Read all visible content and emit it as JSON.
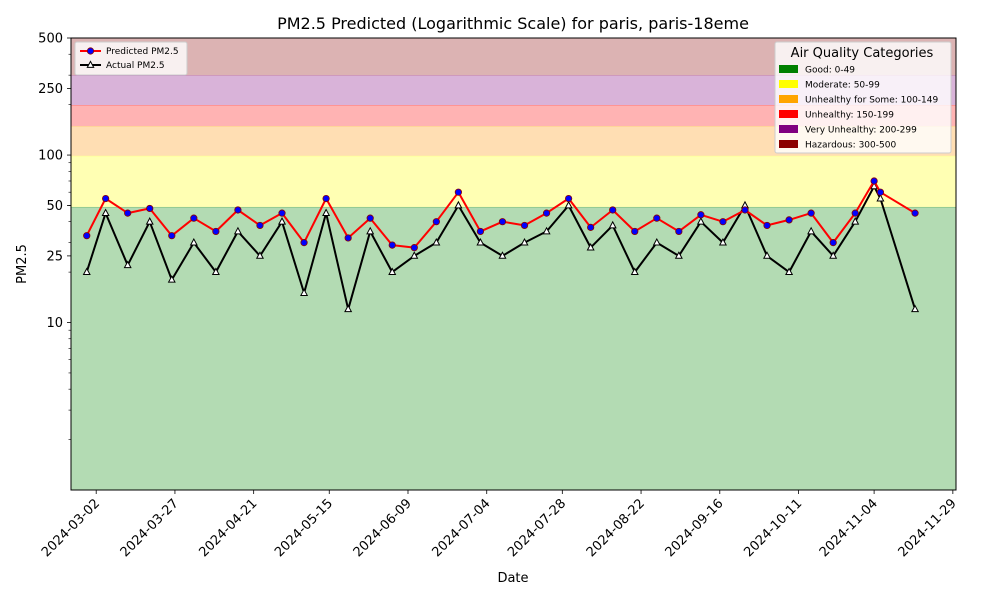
{
  "chart_data": {
    "type": "line",
    "title": "PM2.5 Predicted (Logarithmic Scale) for paris, paris-18eme",
    "xlabel": "Date",
    "ylabel": "PM2.5",
    "yscale": "log",
    "ylim": [
      1,
      500
    ],
    "xlim": [
      "2024-02-23",
      "2024-11-30"
    ],
    "y_ticks": [
      10,
      25,
      50,
      100,
      250,
      500
    ],
    "x_ticks": [
      "2024-03-02",
      "2024-03-27",
      "2024-04-21",
      "2024-05-15",
      "2024-06-09",
      "2024-07-04",
      "2024-07-28",
      "2024-08-22",
      "2024-09-16",
      "2024-10-11",
      "2024-11-04",
      "2024-11-29"
    ],
    "grid": false,
    "legend": {
      "placement": "top-left",
      "entries": [
        {
          "name": "Predicted PM2.5",
          "color": "#ff0000",
          "marker_face": "#0000ff",
          "marker": "circle"
        },
        {
          "name": "Actual PM2.5",
          "color": "#000000",
          "marker_face": "#ffffff",
          "marker": "triangle"
        }
      ]
    },
    "categories_legend": {
      "title": "Air Quality Categories",
      "placement": "top-right",
      "entries": [
        {
          "label": "Good: 0-49",
          "color": "#008000",
          "range": [
            0,
            49
          ],
          "band_color": "#b3dbb3"
        },
        {
          "label": "Moderate: 50-99",
          "color": "#ffff00",
          "range": [
            49,
            99
          ],
          "band_color": "#ffffb3"
        },
        {
          "label": "Unhealthy for Some: 100-149",
          "color": "#ffa500",
          "range": [
            99,
            149
          ],
          "band_color": "#ffdeb3"
        },
        {
          "label": "Unhealthy: 150-199",
          "color": "#ff0000",
          "range": [
            149,
            199
          ],
          "band_color": "#ffb3b3"
        },
        {
          "label": "Very Unhealthy: 200-299",
          "color": "#800080",
          "range": [
            199,
            299
          ],
          "band_color": "#d9b3d9"
        },
        {
          "label": "Hazardous: 300-500",
          "color": "#8b0000",
          "range": [
            299,
            500
          ],
          "band_color": "#dcb3b3"
        }
      ]
    },
    "series": [
      {
        "name": "Predicted PM2.5",
        "x": [
          "2024-02-28",
          "2024-03-05",
          "2024-03-12",
          "2024-03-19",
          "2024-03-26",
          "2024-04-02",
          "2024-04-09",
          "2024-04-16",
          "2024-04-23",
          "2024-04-30",
          "2024-05-07",
          "2024-05-14",
          "2024-05-21",
          "2024-05-28",
          "2024-06-04",
          "2024-06-11",
          "2024-06-18",
          "2024-06-25",
          "2024-07-02",
          "2024-07-09",
          "2024-07-16",
          "2024-07-23",
          "2024-07-30",
          "2024-08-06",
          "2024-08-13",
          "2024-08-20",
          "2024-08-27",
          "2024-09-03",
          "2024-09-10",
          "2024-09-17",
          "2024-09-24",
          "2024-10-01",
          "2024-10-08",
          "2024-10-15",
          "2024-10-22",
          "2024-10-29",
          "2024-11-04",
          "2024-11-06",
          "2024-11-17"
        ],
        "y": [
          33,
          55,
          45,
          48,
          33,
          42,
          35,
          47,
          38,
          45,
          30,
          55,
          32,
          42,
          29,
          28,
          40,
          60,
          35,
          40,
          38,
          45,
          55,
          37,
          47,
          35,
          42,
          35,
          44,
          40,
          47,
          38,
          41,
          45,
          30,
          45,
          70,
          60,
          45
        ]
      },
      {
        "name": "Actual PM2.5",
        "x": [
          "2024-02-28",
          "2024-03-05",
          "2024-03-12",
          "2024-03-19",
          "2024-03-26",
          "2024-04-02",
          "2024-04-09",
          "2024-04-16",
          "2024-04-23",
          "2024-04-30",
          "2024-05-07",
          "2024-05-14",
          "2024-05-21",
          "2024-05-28",
          "2024-06-04",
          "2024-06-11",
          "2024-06-18",
          "2024-06-25",
          "2024-07-02",
          "2024-07-09",
          "2024-07-16",
          "2024-07-23",
          "2024-07-30",
          "2024-08-06",
          "2024-08-13",
          "2024-08-20",
          "2024-08-27",
          "2024-09-03",
          "2024-09-10",
          "2024-09-17",
          "2024-09-24",
          "2024-10-01",
          "2024-10-08",
          "2024-10-15",
          "2024-10-22",
          "2024-10-29",
          "2024-11-04",
          "2024-11-06",
          "2024-11-17"
        ],
        "y": [
          20,
          45,
          22,
          40,
          18,
          30,
          20,
          35,
          25,
          40,
          15,
          45,
          12,
          35,
          20,
          25,
          30,
          50,
          30,
          25,
          30,
          35,
          50,
          28,
          38,
          20,
          30,
          25,
          40,
          30,
          50,
          25,
          20,
          35,
          25,
          40,
          65,
          55,
          12
        ]
      }
    ]
  }
}
